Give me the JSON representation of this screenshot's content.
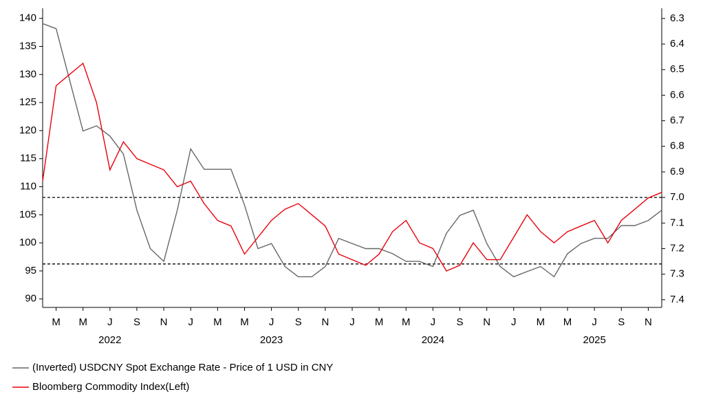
{
  "chart_data": {
    "type": "line",
    "x": [
      "2022-02",
      "2022-03",
      "2022-04",
      "2022-05",
      "2022-06",
      "2022-07",
      "2022-08",
      "2022-09",
      "2022-10",
      "2022-11",
      "2022-12",
      "2023-01",
      "2023-02",
      "2023-03",
      "2023-04",
      "2023-05",
      "2023-06",
      "2023-07",
      "2023-08",
      "2023-09",
      "2023-10",
      "2023-11",
      "2023-12",
      "2024-01",
      "2024-02",
      "2024-03",
      "2024-04",
      "2024-05",
      "2024-06",
      "2024-07",
      "2024-08",
      "2024-09",
      "2024-10",
      "2024-11",
      "2024-12",
      "2025-01",
      "2025-02",
      "2025-03",
      "2025-04",
      "2025-05",
      "2025-06",
      "2025-07",
      "2025-08",
      "2025-09",
      "2025-10",
      "2025-11",
      "2025-12"
    ],
    "series": [
      {
        "name": "(Inverted) USDCNY Spot Exchange Rate - Price of 1 USD in CNY",
        "color": "#666666",
        "axis": "y2",
        "values": [
          6.32,
          6.34,
          6.54,
          6.74,
          6.72,
          6.76,
          6.83,
          7.05,
          7.2,
          7.25,
          7.05,
          6.81,
          6.89,
          6.89,
          6.89,
          7.03,
          7.2,
          7.18,
          7.27,
          7.31,
          7.31,
          7.27,
          7.16,
          7.18,
          7.2,
          7.2,
          7.22,
          7.25,
          7.25,
          7.27,
          7.14,
          7.07,
          7.05,
          7.18,
          7.27,
          7.31,
          7.29,
          7.27,
          7.31,
          7.22,
          7.18,
          7.16,
          7.16,
          7.11,
          7.11,
          7.09,
          7.05
        ]
      },
      {
        "name": "Bloomberg Commodity Index(Left)",
        "color": "#e8000b",
        "values": [
          111,
          128,
          130,
          132,
          125,
          113,
          118,
          115,
          114,
          113,
          110,
          111,
          107,
          104,
          103,
          98,
          101,
          104,
          106,
          107,
          105,
          103,
          98,
          97,
          96,
          98,
          102,
          104,
          100,
          99,
          95,
          96,
          100,
          97,
          97,
          101,
          105,
          102,
          100,
          102,
          103,
          104,
          100,
          104,
          106,
          108,
          109
        ]
      }
    ],
    "xlim": [
      "2022-02",
      "2025-12"
    ],
    "xticks": [
      {
        "value": "2022-03",
        "label": "M"
      },
      {
        "value": "2022-05",
        "label": "M"
      },
      {
        "value": "2022-07",
        "label": "J"
      },
      {
        "value": "2022-09",
        "label": "S"
      },
      {
        "value": "2022-11",
        "label": "N"
      },
      {
        "value": "2023-01",
        "label": "J"
      },
      {
        "value": "2023-03",
        "label": "M"
      },
      {
        "value": "2023-05",
        "label": "M"
      },
      {
        "value": "2023-07",
        "label": "J"
      },
      {
        "value": "2023-09",
        "label": "S"
      },
      {
        "value": "2023-11",
        "label": "N"
      },
      {
        "value": "2024-01",
        "label": "J"
      },
      {
        "value": "2024-03",
        "label": "M"
      },
      {
        "value": "2024-05",
        "label": "M"
      },
      {
        "value": "2024-07",
        "label": "J"
      },
      {
        "value": "2024-09",
        "label": "S"
      },
      {
        "value": "2024-11",
        "label": "N"
      },
      {
        "value": "2025-01",
        "label": "J"
      },
      {
        "value": "2025-03",
        "label": "M"
      },
      {
        "value": "2025-05",
        "label": "M"
      },
      {
        "value": "2025-07",
        "label": "J"
      },
      {
        "value": "2025-09",
        "label": "S"
      },
      {
        "value": "2025-11",
        "label": "N"
      }
    ],
    "year_labels": [
      {
        "value": "2022-07",
        "label": "2022"
      },
      {
        "value": "2023-07",
        "label": "2023"
      },
      {
        "value": "2024-07",
        "label": "2024"
      },
      {
        "value": "2025-07",
        "label": "2025"
      }
    ],
    "ylim": [
      88.5,
      141.8
    ],
    "yticks": [
      90,
      95,
      100,
      105,
      110,
      115,
      120,
      125,
      130,
      135,
      140
    ],
    "y2lim": [
      7.43,
      6.26
    ],
    "y2ticks": [
      6.3,
      6.4,
      6.5,
      6.6,
      6.7,
      6.8,
      6.9,
      {
        "value": 7,
        "label": "7.0"
      },
      7.1,
      7.2,
      7.3,
      7.4
    ],
    "reference_lines": [
      7.0,
      7.26
    ],
    "reference_color": "#000000"
  }
}
